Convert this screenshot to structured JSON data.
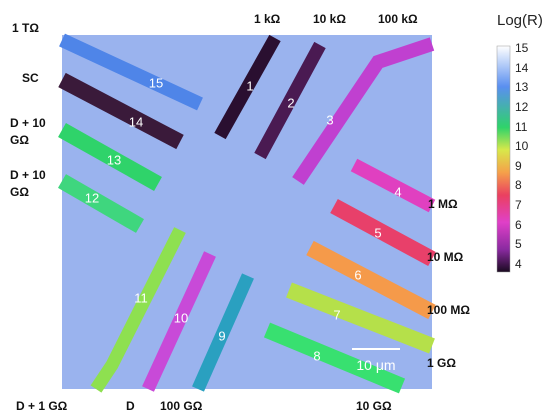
{
  "colorbar": {
    "title": "Log(R)",
    "ticks": [
      15,
      14,
      13,
      12,
      11,
      10,
      9,
      8,
      7,
      6,
      5,
      4
    ]
  },
  "scale_bar": "10 μm",
  "electrodes": [
    "1",
    "2",
    "3",
    "4",
    "5",
    "6",
    "7",
    "8",
    "9",
    "10",
    "11",
    "12",
    "13",
    "14",
    "15"
  ],
  "resistance_labels": [
    "1 TΩ",
    "SC",
    "D + 10 GΩ",
    "D + 10 GΩ",
    "1 kΩ",
    "10 kΩ",
    "100 kΩ",
    "1 MΩ",
    "10 MΩ",
    "100 MΩ",
    "1 GΩ",
    "D + 1 GΩ",
    "D",
    "100 GΩ",
    "10 GΩ"
  ]
}
